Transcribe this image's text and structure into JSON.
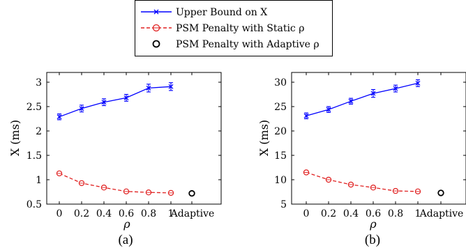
{
  "legend": {
    "entries": [
      {
        "label": "Upper Bound on X",
        "color": "#0000ff",
        "marker": "cross",
        "dash": "solid"
      },
      {
        "label": "PSM Penalty with Static ρ",
        "color": "#e02020",
        "marker": "circle",
        "dash": "dashed"
      },
      {
        "label": "PSM Penalty with Adaptive ρ",
        "color": "#000000",
        "marker": "circle",
        "dash": "none"
      }
    ]
  },
  "chart_data": [
    {
      "type": "line",
      "caption": "(a)",
      "xlabel": "ρ",
      "ylabel": "X (ms)",
      "categories": [
        "0",
        "0.2",
        "0.4",
        "0.6",
        "0.8",
        "1",
        "Adaptive"
      ],
      "x": [
        0,
        0.2,
        0.4,
        0.6,
        0.8,
        1
      ],
      "ylim": [
        0.5,
        3.2
      ],
      "yticks": [
        0.5,
        1,
        1.5,
        2,
        2.5,
        3
      ],
      "ytick_labels": [
        "0.5",
        "1",
        "1.5",
        "2",
        "2.5",
        "3"
      ],
      "series": [
        {
          "name": "Upper Bound on X",
          "values": [
            2.29,
            2.46,
            2.59,
            2.68,
            2.88,
            2.91
          ],
          "error": [
            0.06,
            0.07,
            0.07,
            0.07,
            0.08,
            0.08
          ]
        },
        {
          "name": "PSM Penalty with Static ρ",
          "values": [
            1.13,
            0.93,
            0.84,
            0.76,
            0.74,
            0.73
          ],
          "error": [
            0.03,
            0.02,
            0.02,
            0.02,
            0.02,
            0.02
          ]
        },
        {
          "name": "PSM Penalty with Adaptive ρ",
          "x": [
            "Adaptive"
          ],
          "values": [
            0.72
          ]
        }
      ]
    },
    {
      "type": "line",
      "caption": "(b)",
      "xlabel": "ρ",
      "ylabel": "X (ms)",
      "categories": [
        "0",
        "0.2",
        "0.4",
        "0.6",
        "0.8",
        "1",
        "Adaptive"
      ],
      "x": [
        0,
        0.2,
        0.4,
        0.6,
        0.8,
        1
      ],
      "ylim": [
        5,
        32
      ],
      "yticks": [
        5,
        10,
        15,
        20,
        25,
        30
      ],
      "ytick_labels": [
        "5",
        "10",
        "15",
        "20",
        "25",
        "30"
      ],
      "series": [
        {
          "name": "Upper Bound on X",
          "values": [
            23.1,
            24.4,
            26.1,
            27.7,
            28.7,
            29.8
          ],
          "error": [
            0.6,
            0.6,
            0.6,
            0.8,
            0.7,
            0.7
          ]
        },
        {
          "name": "PSM Penalty with Static ρ",
          "values": [
            11.5,
            10.0,
            9.0,
            8.4,
            7.7,
            7.6
          ],
          "error": [
            0.3,
            0.2,
            0.2,
            0.2,
            0.2,
            0.2
          ]
        },
        {
          "name": "PSM Penalty with Adaptive ρ",
          "x": [
            "Adaptive"
          ],
          "values": [
            7.3
          ]
        }
      ]
    }
  ]
}
